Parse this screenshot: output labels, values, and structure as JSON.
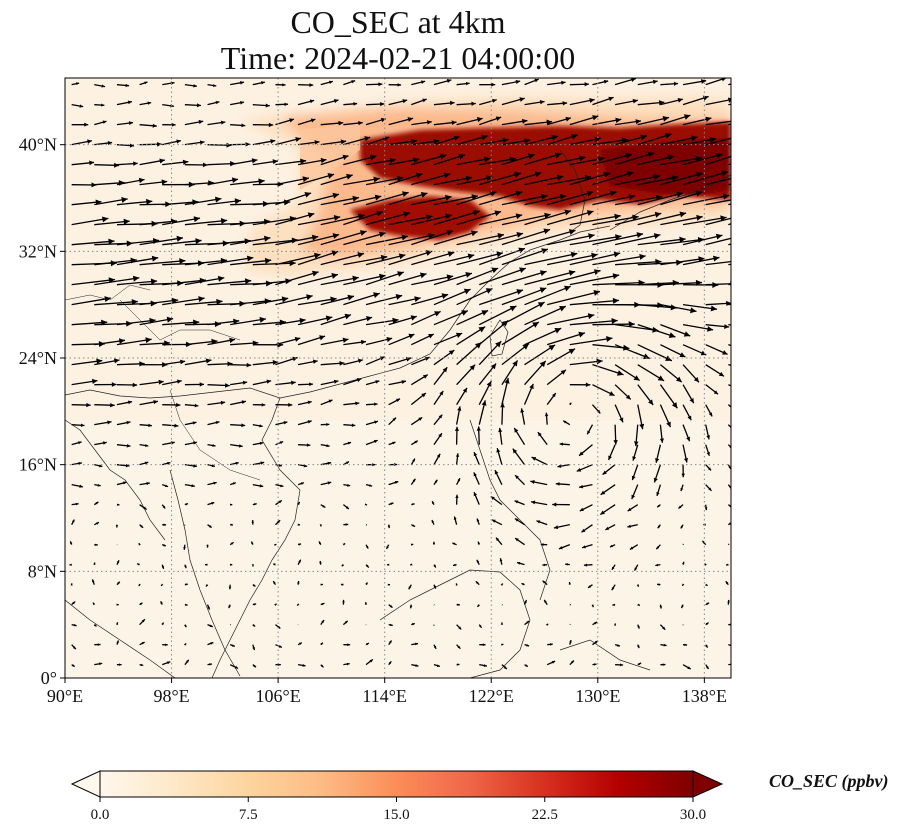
{
  "title": {
    "line1": "CO_SEC at 4km",
    "line2": "Time: 2024-02-21 04:00:00"
  },
  "map": {
    "projection": "PlateCarree",
    "lon_range": [
      90,
      140
    ],
    "lat_range": [
      0,
      45
    ],
    "gridlines": "dotted",
    "field": "CO_SEC",
    "level": "4km",
    "x_ticks": [
      {
        "value": 90,
        "label": "90°E"
      },
      {
        "value": 98,
        "label": "98°E"
      },
      {
        "value": 106,
        "label": "106°E"
      },
      {
        "value": 114,
        "label": "114°E"
      },
      {
        "value": 122,
        "label": "122°E"
      },
      {
        "value": 130,
        "label": "130°E"
      },
      {
        "value": 138,
        "label": "138°E"
      }
    ],
    "y_ticks": [
      {
        "value": 0,
        "label": "0°"
      },
      {
        "value": 8,
        "label": "8°N"
      },
      {
        "value": 16,
        "label": "16°N"
      },
      {
        "value": 24,
        "label": "24°N"
      },
      {
        "value": 32,
        "label": "32°N"
      },
      {
        "value": 40,
        "label": "40°N"
      }
    ],
    "features": {
      "plume_north_china": {
        "lon": [
          110,
          140
        ],
        "lat": [
          33,
          42
        ],
        "peak_ppbv": 30
      },
      "anticyclone_center": {
        "lon": 128,
        "lat": 21
      },
      "background_ppbv": 1.5
    }
  },
  "colorbar": {
    "label": "CO_SEC (ppbv)",
    "min": 0.0,
    "max": 30.0,
    "extend": "both",
    "colormap": "OrRd",
    "ticks": [
      "0.0",
      "7.5",
      "15.0",
      "22.5",
      "30.0"
    ],
    "tick_values": [
      0,
      7.5,
      15,
      22.5,
      30
    ]
  },
  "colors": {
    "low": "#fff7ec",
    "mid": "#fdbb84",
    "high": "#d7301f",
    "max": "#7f0000",
    "vector": "#000000",
    "coast": "#222222"
  }
}
